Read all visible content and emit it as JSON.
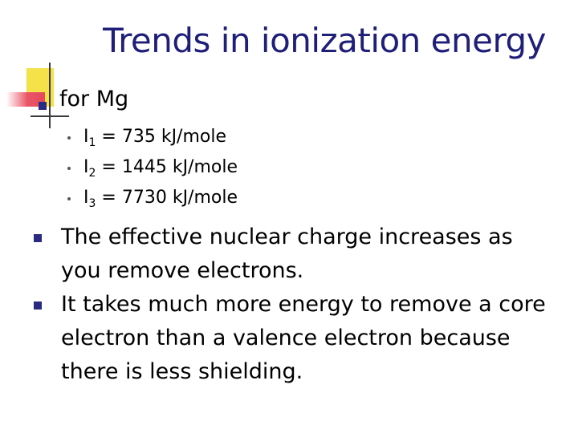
{
  "slide": {
    "title": "Trends in ionization energy",
    "level1_text": "for Mg",
    "ionization": [
      {
        "symbol": "I",
        "index": "1",
        "value": "= 735 kJ/mole"
      },
      {
        "symbol": "I",
        "index": "2",
        "value": "= 1445 kJ/mole"
      },
      {
        "symbol": "I",
        "index": "3",
        "value": "= 7730 kJ/mole"
      }
    ],
    "bullets": [
      "The effective nuclear charge increases as you remove electrons.",
      "It takes much more energy to remove a core electron than a valence electron because there is less shielding."
    ]
  },
  "colors": {
    "title": "#1f1f7a",
    "bullet": "#2a2a80",
    "accent_yellow": "#f5e14a",
    "accent_red": "#ea5566"
  }
}
